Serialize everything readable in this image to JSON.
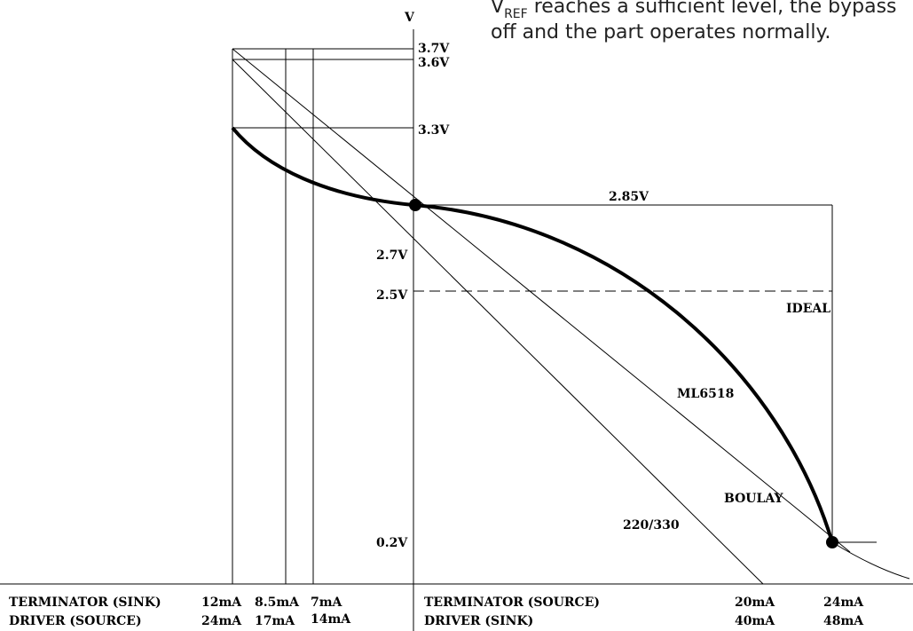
{
  "header_text": {
    "line1_prefix": "V",
    "line1_sub": "REF",
    "line1_rest": " reaches a sufficient level, the bypass",
    "line2": "off and the part operates normally."
  },
  "axis": {
    "y_label": "V"
  },
  "voltage_labels": [
    "3.7V",
    "3.6V",
    "3.3V",
    "2.85V",
    "2.7V",
    "2.5V",
    "0.2V"
  ],
  "curve_labels": {
    "ideal": "IDEAL",
    "ml6518": "ML6518",
    "boulay": "BOULAY",
    "r220_330": "220/330"
  },
  "bottom_left": {
    "row1_label": "TERMINATOR (SINK)",
    "row2_label": "DRIVER (SOURCE)",
    "row1_values": [
      "12mA",
      "8.5mA",
      "7mA"
    ],
    "row2_values": [
      "24mA",
      "17mA",
      "14mA"
    ]
  },
  "bottom_right": {
    "row1_label": "TERMINATOR (SOURCE)",
    "row2_label": "DRIVER (SINK)",
    "row1_values": [
      "20mA",
      "24mA"
    ],
    "row2_values": [
      "40mA",
      "48mA"
    ]
  }
}
